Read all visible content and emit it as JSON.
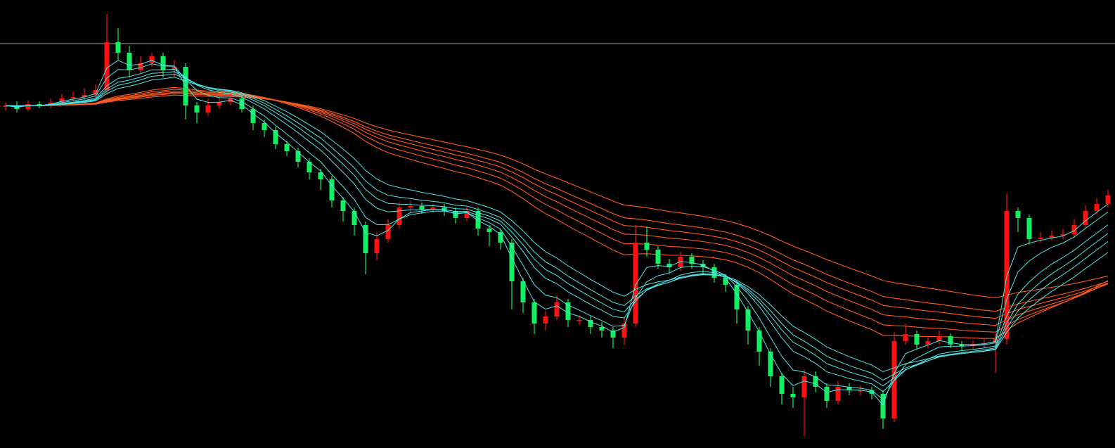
{
  "chart_data": {
    "type": "candlestick",
    "title": "",
    "xlabel": "",
    "ylabel": "",
    "ylim": [
      3,
      640
    ],
    "grid": false,
    "legend": "none",
    "background_color": "#000000",
    "up_color": "#ff1010",
    "down_color": "#10f060",
    "horizontal_line": {
      "value": 578,
      "color": "#a0a0a0"
    },
    "moving_averages": {
      "type": "ema",
      "fast_periods": [
        3,
        5,
        8,
        10,
        12,
        15
      ],
      "fast_color": "#4ee6e6",
      "slow_periods": [
        30,
        35,
        40,
        45,
        50,
        60
      ],
      "slow_color": "#ff5a1e"
    },
    "open": [
      488,
      490,
      485,
      492,
      490,
      494,
      500,
      502,
      505,
      512,
      580,
      565,
      540,
      550,
      560,
      540,
      545,
      490,
      480,
      490,
      495,
      500,
      485,
      465,
      455,
      435,
      425,
      410,
      395,
      385,
      355,
      340,
      320,
      280,
      300,
      320,
      345,
      347,
      342,
      345,
      340,
      330,
      340,
      315,
      310,
      295,
      240,
      210,
      180,
      190,
      210,
      185,
      185,
      175,
      170,
      160,
      180,
      295,
      285,
      265,
      260,
      275,
      265,
      260,
      245,
      235,
      200,
      170,
      140,
      105,
      80,
      75,
      105,
      90,
      70,
      90,
      85,
      85,
      80,
      45,
      155,
      165,
      150,
      155,
      162,
      150,
      148,
      150,
      152,
      158,
      340,
      330,
      300,
      302,
      305,
      307,
      320,
      340,
      350
    ],
    "high": [
      494,
      496,
      497,
      496,
      500,
      506,
      510,
      515,
      520,
      620,
      600,
      575,
      560,
      565,
      565,
      555,
      550,
      495,
      500,
      505,
      510,
      505,
      490,
      470,
      460,
      440,
      430,
      415,
      400,
      390,
      360,
      345,
      325,
      310,
      328,
      352,
      355,
      352,
      350,
      350,
      345,
      346,
      345,
      320,
      315,
      300,
      245,
      215,
      198,
      220,
      215,
      192,
      190,
      182,
      175,
      188,
      320,
      318,
      290,
      272,
      282,
      280,
      270,
      265,
      250,
      240,
      205,
      175,
      145,
      110,
      90,
      115,
      112,
      95,
      98,
      95,
      92,
      90,
      85,
      168,
      180,
      170,
      160,
      170,
      166,
      155,
      156,
      158,
      166,
      365,
      345,
      335,
      310,
      312,
      314,
      328,
      348,
      358,
      370
    ],
    "low": [
      482,
      480,
      482,
      486,
      486,
      490,
      496,
      498,
      500,
      505,
      555,
      530,
      535,
      545,
      530,
      530,
      470,
      465,
      475,
      485,
      490,
      480,
      455,
      445,
      428,
      418,
      402,
      385,
      370,
      345,
      325,
      305,
      250,
      270,
      295,
      315,
      338,
      336,
      338,
      333,
      322,
      326,
      305,
      290,
      285,
      200,
      195,
      165,
      170,
      185,
      175,
      178,
      165,
      160,
      145,
      150,
      175,
      275,
      258,
      252,
      255,
      258,
      250,
      238,
      225,
      180,
      150,
      120,
      90,
      65,
      60,
      20,
      82,
      60,
      65,
      78,
      78,
      72,
      30,
      40,
      150,
      144,
      145,
      150,
      145,
      142,
      143,
      146,
      110,
      150,
      310,
      292,
      295,
      298,
      300,
      302,
      315,
      335,
      345
    ],
    "close": [
      490,
      485,
      492,
      490,
      494,
      500,
      502,
      505,
      512,
      580,
      565,
      540,
      550,
      560,
      540,
      545,
      490,
      480,
      490,
      495,
      500,
      485,
      465,
      455,
      435,
      425,
      410,
      395,
      385,
      355,
      340,
      320,
      280,
      300,
      320,
      345,
      347,
      342,
      345,
      340,
      330,
      340,
      315,
      310,
      295,
      240,
      210,
      180,
      190,
      210,
      185,
      185,
      175,
      170,
      160,
      180,
      295,
      285,
      265,
      260,
      275,
      265,
      260,
      245,
      235,
      200,
      170,
      140,
      105,
      80,
      75,
      105,
      90,
      70,
      90,
      85,
      85,
      80,
      45,
      155,
      165,
      150,
      155,
      162,
      150,
      148,
      150,
      152,
      158,
      340,
      330,
      300,
      302,
      305,
      307,
      320,
      340,
      350,
      362
    ]
  }
}
